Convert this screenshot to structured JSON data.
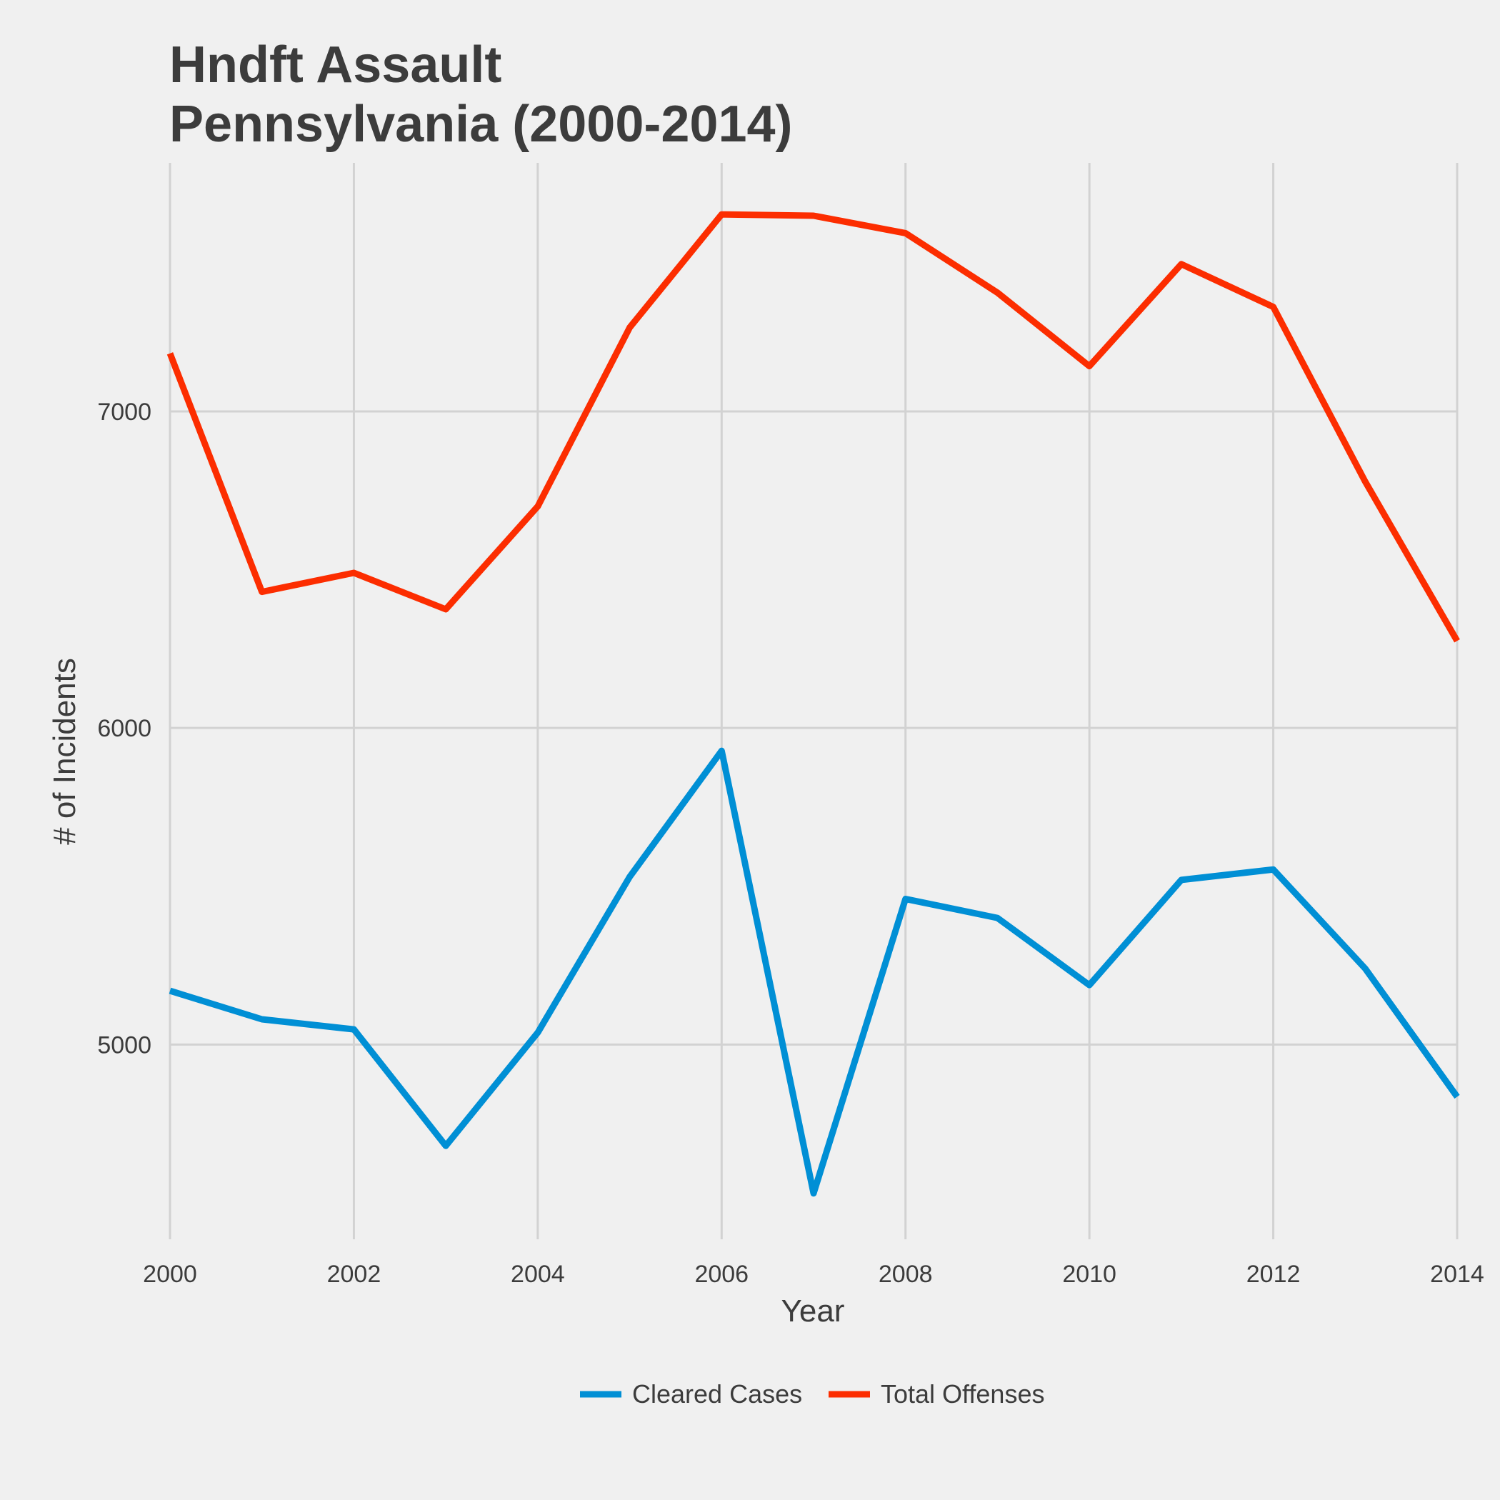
{
  "chart_data": {
    "type": "line",
    "title_lines": [
      "Hndft Assault",
      "Pennsylvania (2000-2014)"
    ],
    "xlabel": "Year",
    "ylabel": "# of Incidents",
    "x": [
      2000,
      2001,
      2002,
      2003,
      2004,
      2005,
      2006,
      2007,
      2008,
      2009,
      2010,
      2011,
      2012,
      2013,
      2014
    ],
    "xlim": [
      2000,
      2014
    ],
    "ylim": [
      4385,
      7785
    ],
    "x_ticks": [
      2000,
      2002,
      2004,
      2006,
      2008,
      2010,
      2012,
      2014
    ],
    "y_ticks": [
      5000,
      6000,
      7000
    ],
    "grid": true,
    "legend_position": "bottom",
    "series": [
      {
        "name": "Cleared Cases",
        "color": "#008fd5",
        "values": [
          5170,
          5080,
          5048,
          4680,
          5038,
          5530,
          5928,
          4530,
          5460,
          5400,
          5188,
          5520,
          5553,
          5240,
          4835
        ]
      },
      {
        "name": "Total Offenses",
        "color": "#fc2d00",
        "values": [
          7183,
          6430,
          6490,
          6375,
          6700,
          7265,
          7622,
          7618,
          7563,
          7375,
          7143,
          7465,
          7330,
          6778,
          6275
        ]
      }
    ]
  }
}
